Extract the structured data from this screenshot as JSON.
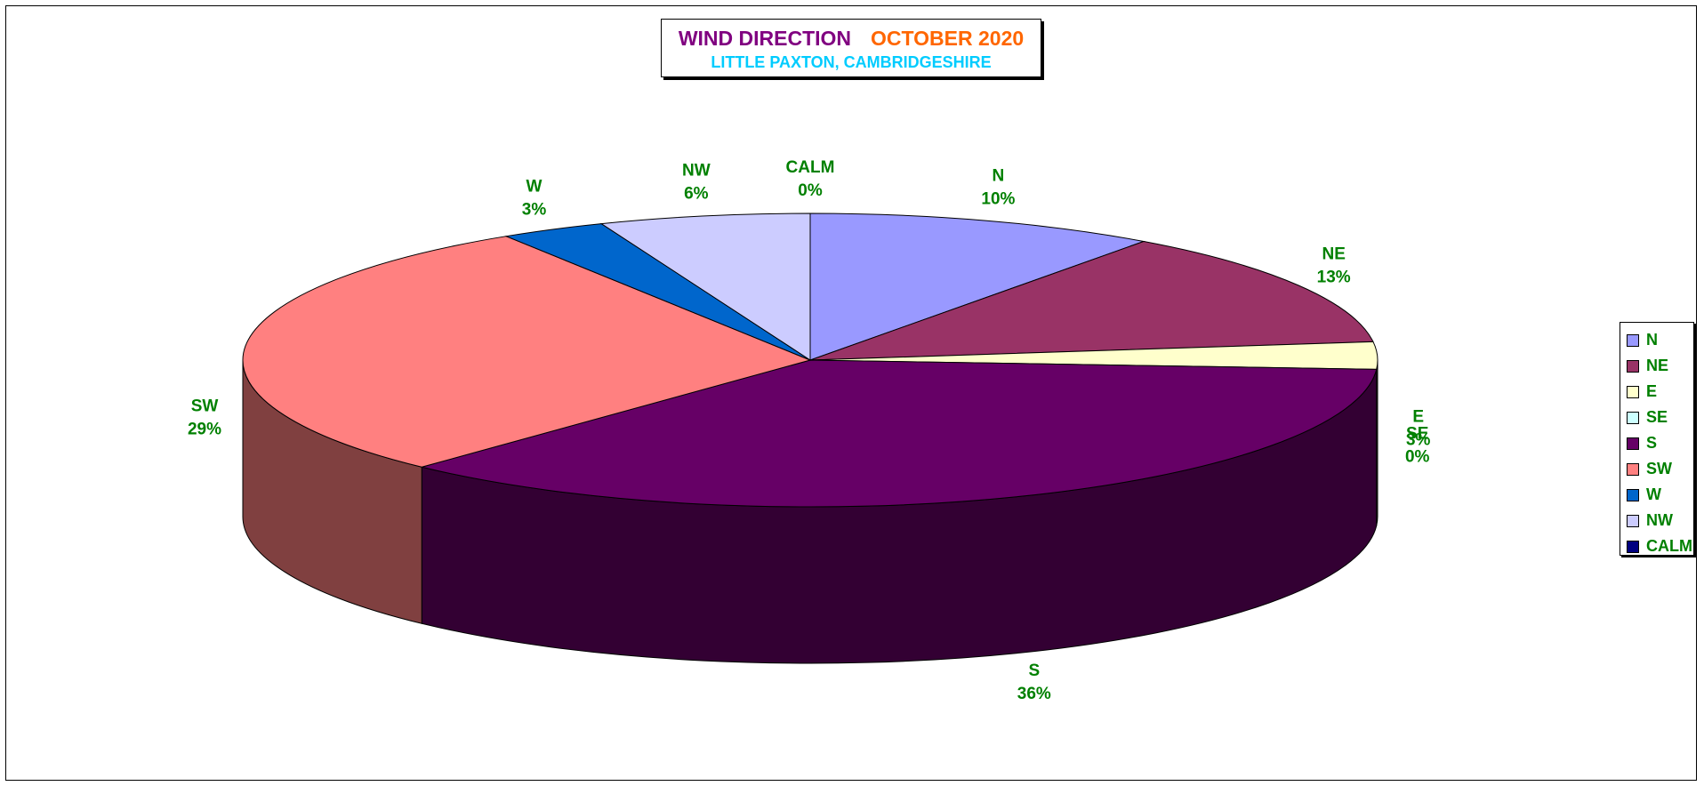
{
  "chart_data": {
    "type": "pie",
    "style": "3d",
    "title": "WIND DIRECTION",
    "title_date": "OCTOBER 2020",
    "subtitle": "LITTLE PAXTON, CAMBRIDGESHIRE",
    "legend_placement": "right",
    "slices": [
      {
        "label": "N",
        "value": 10,
        "value_label": "10%",
        "color": "#9999ff",
        "side_color": "#5c5c99"
      },
      {
        "label": "NE",
        "value": 13,
        "value_label": "13%",
        "color": "#993366",
        "side_color": "#5c1f3d"
      },
      {
        "label": "E",
        "value": 3,
        "value_label": "3%",
        "color": "#ffffcc",
        "side_color": "#99997a"
      },
      {
        "label": "SE",
        "value": 0,
        "value_label": "0%",
        "color": "#ccffff",
        "side_color": "#7a9999"
      },
      {
        "label": "S",
        "value": 36,
        "value_label": "36%",
        "color": "#660066",
        "side_color": "#330033"
      },
      {
        "label": "SW",
        "value": 29,
        "value_label": "29%",
        "color": "#ff8080",
        "side_color": "#804040"
      },
      {
        "label": "W",
        "value": 3,
        "value_label": "3%",
        "color": "#0066cc",
        "side_color": "#003d7a"
      },
      {
        "label": "NW",
        "value": 6,
        "value_label": "6%",
        "color": "#ccccff",
        "side_color": "#7a7a99"
      },
      {
        "label": "CALM",
        "value": 0,
        "value_label": "0%",
        "color": "#000080",
        "side_color": "#00004d"
      }
    ]
  }
}
